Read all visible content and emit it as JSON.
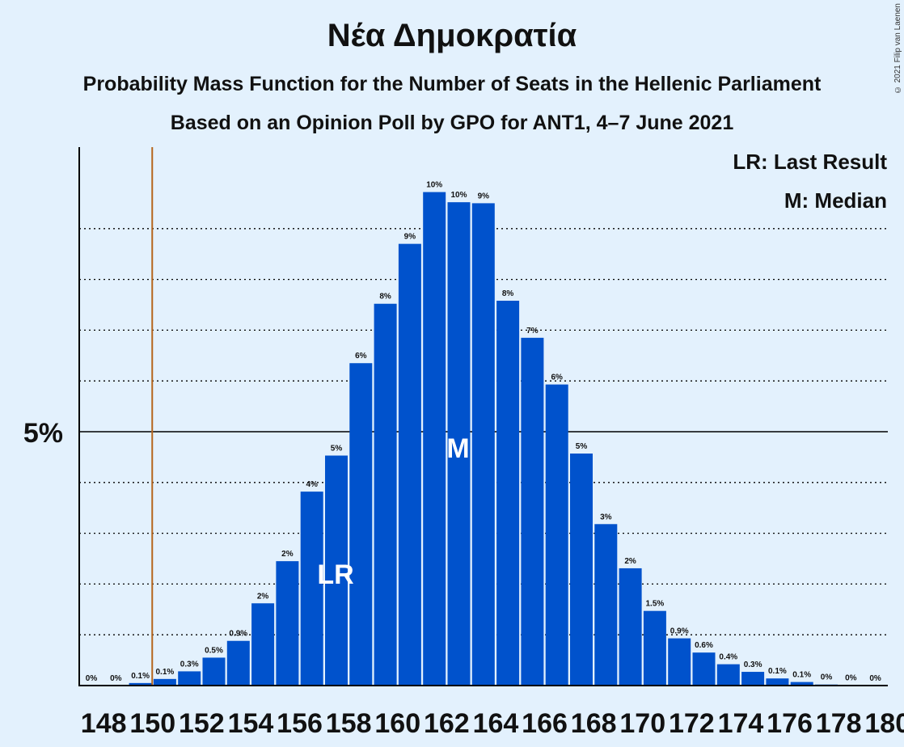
{
  "title": "Νέα Δημοκρατία",
  "subtitle": "Probability Mass Function for the Number of Seats in the Hellenic Parliament",
  "source": "Based on an Opinion Poll by GPO for ANT1, 4–7 June 2021",
  "copyright": "© 2021 Filip van Laenen",
  "legend": {
    "lr": "LR: Last Result",
    "m": "M: Median"
  },
  "colors": {
    "bar": "#0052cc",
    "background": "#e3f1fd",
    "last_result_line": "#b5651d"
  },
  "chart_data": {
    "type": "bar",
    "xlabel": "",
    "ylabel": "",
    "ylim": [
      0,
      10.6
    ],
    "ytick_label": "5%",
    "ytick_value": 5,
    "grid": "dotted every 1%",
    "last_result_seat": 150,
    "median_seat": 163,
    "markers": {
      "last_result": "LR",
      "median": "M"
    },
    "x_tick_labels": [
      "148",
      "150",
      "152",
      "154",
      "156",
      "158",
      "160",
      "162",
      "164",
      "166",
      "168",
      "170",
      "172",
      "174",
      "176",
      "178",
      "180"
    ],
    "categories": [
      148,
      149,
      150,
      151,
      152,
      153,
      154,
      155,
      156,
      157,
      158,
      159,
      160,
      161,
      162,
      163,
      164,
      165,
      166,
      167,
      168,
      169,
      170,
      171,
      172,
      173,
      174,
      175,
      176,
      177,
      178,
      179,
      180
    ],
    "values": [
      0,
      0,
      0.05,
      0.13,
      0.28,
      0.55,
      0.88,
      1.62,
      2.45,
      3.82,
      4.53,
      6.35,
      7.52,
      8.7,
      9.72,
      9.52,
      9.5,
      7.58,
      6.85,
      5.93,
      4.57,
      3.18,
      2.31,
      1.47,
      0.93,
      0.65,
      0.42,
      0.27,
      0.14,
      0.07,
      0.02,
      0.005,
      0.002
    ],
    "labels": [
      "0%",
      "0%",
      "0.1%",
      "0.1%",
      "0.3%",
      "0.5%",
      "0.9%",
      "2%",
      "2%",
      "4%",
      "5%",
      "6%",
      "8%",
      "9%",
      "10%",
      "10%",
      "9%",
      "8%",
      "7%",
      "6%",
      "5%",
      "3%",
      "2%",
      "1.5%",
      "0.9%",
      "0.6%",
      "0.4%",
      "0.3%",
      "0.1%",
      "0.1%",
      "0%",
      "0%",
      "0%"
    ]
  }
}
